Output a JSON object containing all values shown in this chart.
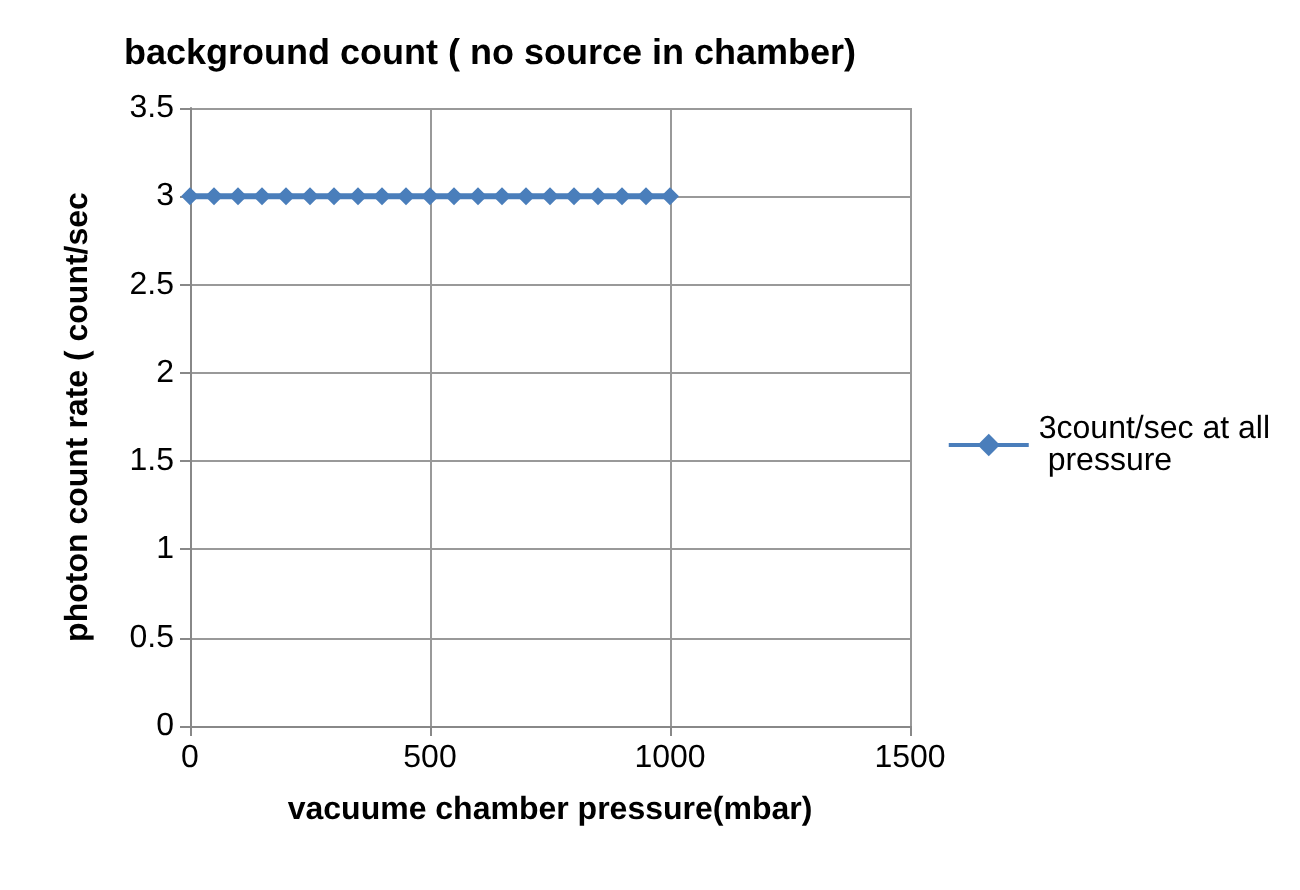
{
  "chart_data": {
    "type": "line",
    "title": "background count ( no source in chamber)",
    "xlabel": "vacuume chamber pressure(mbar)",
    "ylabel": "photon count rate ( count/sec",
    "x": [
      0,
      50,
      100,
      150,
      200,
      250,
      300,
      350,
      400,
      450,
      500,
      550,
      600,
      650,
      700,
      750,
      800,
      850,
      900,
      950,
      1000
    ],
    "series": [
      {
        "name": "3count/sec at all pressure",
        "color": "#4a7ebb",
        "values": [
          3,
          3,
          3,
          3,
          3,
          3,
          3,
          3,
          3,
          3,
          3,
          3,
          3,
          3,
          3,
          3,
          3,
          3,
          3,
          3,
          3
        ]
      }
    ],
    "xlim": [
      0,
      1500
    ],
    "xticks": [
      0,
      500,
      1000,
      1500
    ],
    "ylim": [
      0,
      3.5
    ],
    "yticks": [
      0,
      0.5,
      1,
      1.5,
      2,
      2.5,
      3,
      3.5
    ],
    "grid": true,
    "legend": "right",
    "marker": "diamond",
    "line_style": "solid"
  }
}
